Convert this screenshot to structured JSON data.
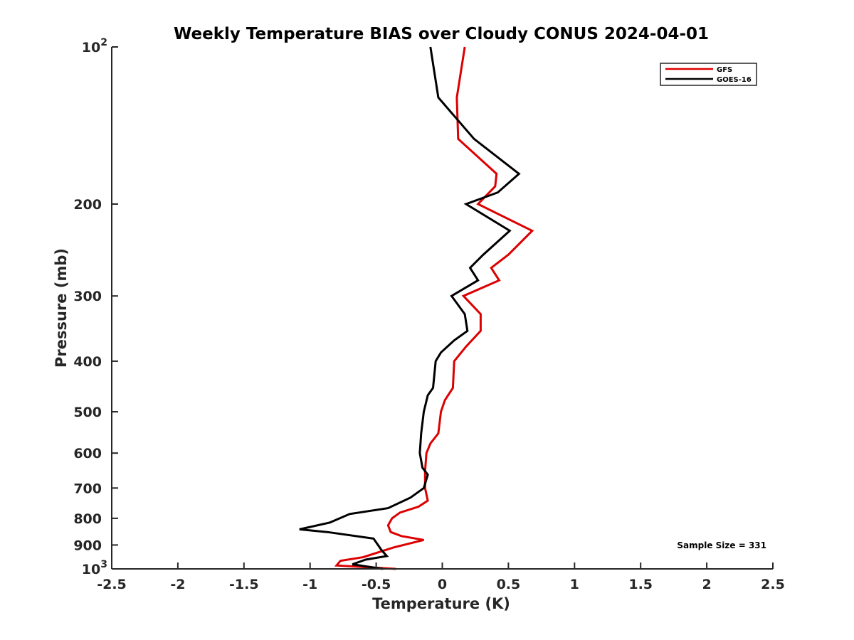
{
  "chart_data": {
    "type": "line",
    "title": "Weekly Temperature BIAS over Cloudy CONUS 2024-04-01",
    "xlabel": "Temperature (K)",
    "ylabel": "Pressure (mb)",
    "xlim": [
      -2.5,
      2.5
    ],
    "ylim": [
      100,
      1000
    ],
    "y_scale": "log",
    "y_direction": "reversed",
    "x_ticks": [
      -2.5,
      -2,
      -1.5,
      -1,
      -0.5,
      0,
      0.5,
      1,
      1.5,
      2,
      2.5
    ],
    "x_tick_labels": [
      "-2.5",
      "-2",
      "-1.5",
      "-1",
      "-0.5",
      "0",
      "0.5",
      "1",
      "1.5",
      "2",
      "2.5"
    ],
    "y_ticks": [
      100,
      200,
      300,
      400,
      500,
      600,
      700,
      800,
      900,
      1000
    ],
    "y_tick_labels": [
      {
        "base": "10",
        "exp": "2"
      },
      {
        "base": "200",
        "exp": ""
      },
      {
        "base": "300",
        "exp": ""
      },
      {
        "base": "400",
        "exp": ""
      },
      {
        "base": "500",
        "exp": ""
      },
      {
        "base": "600",
        "exp": ""
      },
      {
        "base": "700",
        "exp": ""
      },
      {
        "base": "800",
        "exp": ""
      },
      {
        "base": "900",
        "exp": ""
      },
      {
        "base": "10",
        "exp": "3"
      }
    ],
    "grid": false,
    "legend_position": "top-right",
    "annotation": "Sample Size = 331",
    "series": [
      {
        "name": "GFS",
        "color": "#dd0000",
        "points": [
          {
            "x": 0.17,
            "p": 100
          },
          {
            "x": 0.11,
            "p": 125
          },
          {
            "x": 0.12,
            "p": 150
          },
          {
            "x": 0.41,
            "p": 175
          },
          {
            "x": 0.4,
            "p": 185
          },
          {
            "x": 0.27,
            "p": 200
          },
          {
            "x": 0.68,
            "p": 225
          },
          {
            "x": 0.5,
            "p": 250
          },
          {
            "x": 0.37,
            "p": 265
          },
          {
            "x": 0.43,
            "p": 280
          },
          {
            "x": 0.16,
            "p": 300
          },
          {
            "x": 0.29,
            "p": 325
          },
          {
            "x": 0.29,
            "p": 350
          },
          {
            "x": 0.18,
            "p": 375
          },
          {
            "x": 0.09,
            "p": 400
          },
          {
            "x": 0.08,
            "p": 450
          },
          {
            "x": 0.02,
            "p": 475
          },
          {
            "x": -0.01,
            "p": 500
          },
          {
            "x": -0.03,
            "p": 550
          },
          {
            "x": -0.09,
            "p": 575
          },
          {
            "x": -0.12,
            "p": 600
          },
          {
            "x": -0.13,
            "p": 650
          },
          {
            "x": -0.13,
            "p": 700
          },
          {
            "x": -0.11,
            "p": 740
          },
          {
            "x": -0.18,
            "p": 760
          },
          {
            "x": -0.32,
            "p": 780
          },
          {
            "x": -0.38,
            "p": 800
          },
          {
            "x": -0.41,
            "p": 825
          },
          {
            "x": -0.39,
            "p": 850
          },
          {
            "x": -0.31,
            "p": 865
          },
          {
            "x": -0.14,
            "p": 880
          },
          {
            "x": -0.37,
            "p": 910
          },
          {
            "x": -0.6,
            "p": 950
          },
          {
            "x": -0.77,
            "p": 965
          },
          {
            "x": -0.8,
            "p": 985
          },
          {
            "x": -0.35,
            "p": 1000
          }
        ]
      },
      {
        "name": "GOES-16",
        "color": "#000000",
        "points": [
          {
            "x": -0.09,
            "p": 100
          },
          {
            "x": -0.03,
            "p": 125
          },
          {
            "x": 0.24,
            "p": 150
          },
          {
            "x": 0.58,
            "p": 175
          },
          {
            "x": 0.42,
            "p": 190
          },
          {
            "x": 0.18,
            "p": 200
          },
          {
            "x": 0.51,
            "p": 225
          },
          {
            "x": 0.31,
            "p": 250
          },
          {
            "x": 0.21,
            "p": 265
          },
          {
            "x": 0.27,
            "p": 280
          },
          {
            "x": 0.07,
            "p": 300
          },
          {
            "x": 0.17,
            "p": 325
          },
          {
            "x": 0.19,
            "p": 350
          },
          {
            "x": 0.09,
            "p": 365
          },
          {
            "x": -0.01,
            "p": 385
          },
          {
            "x": -0.05,
            "p": 400
          },
          {
            "x": -0.07,
            "p": 450
          },
          {
            "x": -0.11,
            "p": 465
          },
          {
            "x": -0.14,
            "p": 500
          },
          {
            "x": -0.16,
            "p": 550
          },
          {
            "x": -0.17,
            "p": 600
          },
          {
            "x": -0.15,
            "p": 640
          },
          {
            "x": -0.11,
            "p": 660
          },
          {
            "x": -0.14,
            "p": 700
          },
          {
            "x": -0.24,
            "p": 730
          },
          {
            "x": -0.41,
            "p": 765
          },
          {
            "x": -0.7,
            "p": 785
          },
          {
            "x": -0.85,
            "p": 815
          },
          {
            "x": -1.08,
            "p": 840
          },
          {
            "x": -0.87,
            "p": 850
          },
          {
            "x": -0.52,
            "p": 875
          },
          {
            "x": -0.46,
            "p": 920
          },
          {
            "x": -0.42,
            "p": 945
          },
          {
            "x": -0.58,
            "p": 960
          },
          {
            "x": -0.68,
            "p": 980
          },
          {
            "x": -0.45,
            "p": 1000
          }
        ]
      }
    ]
  }
}
